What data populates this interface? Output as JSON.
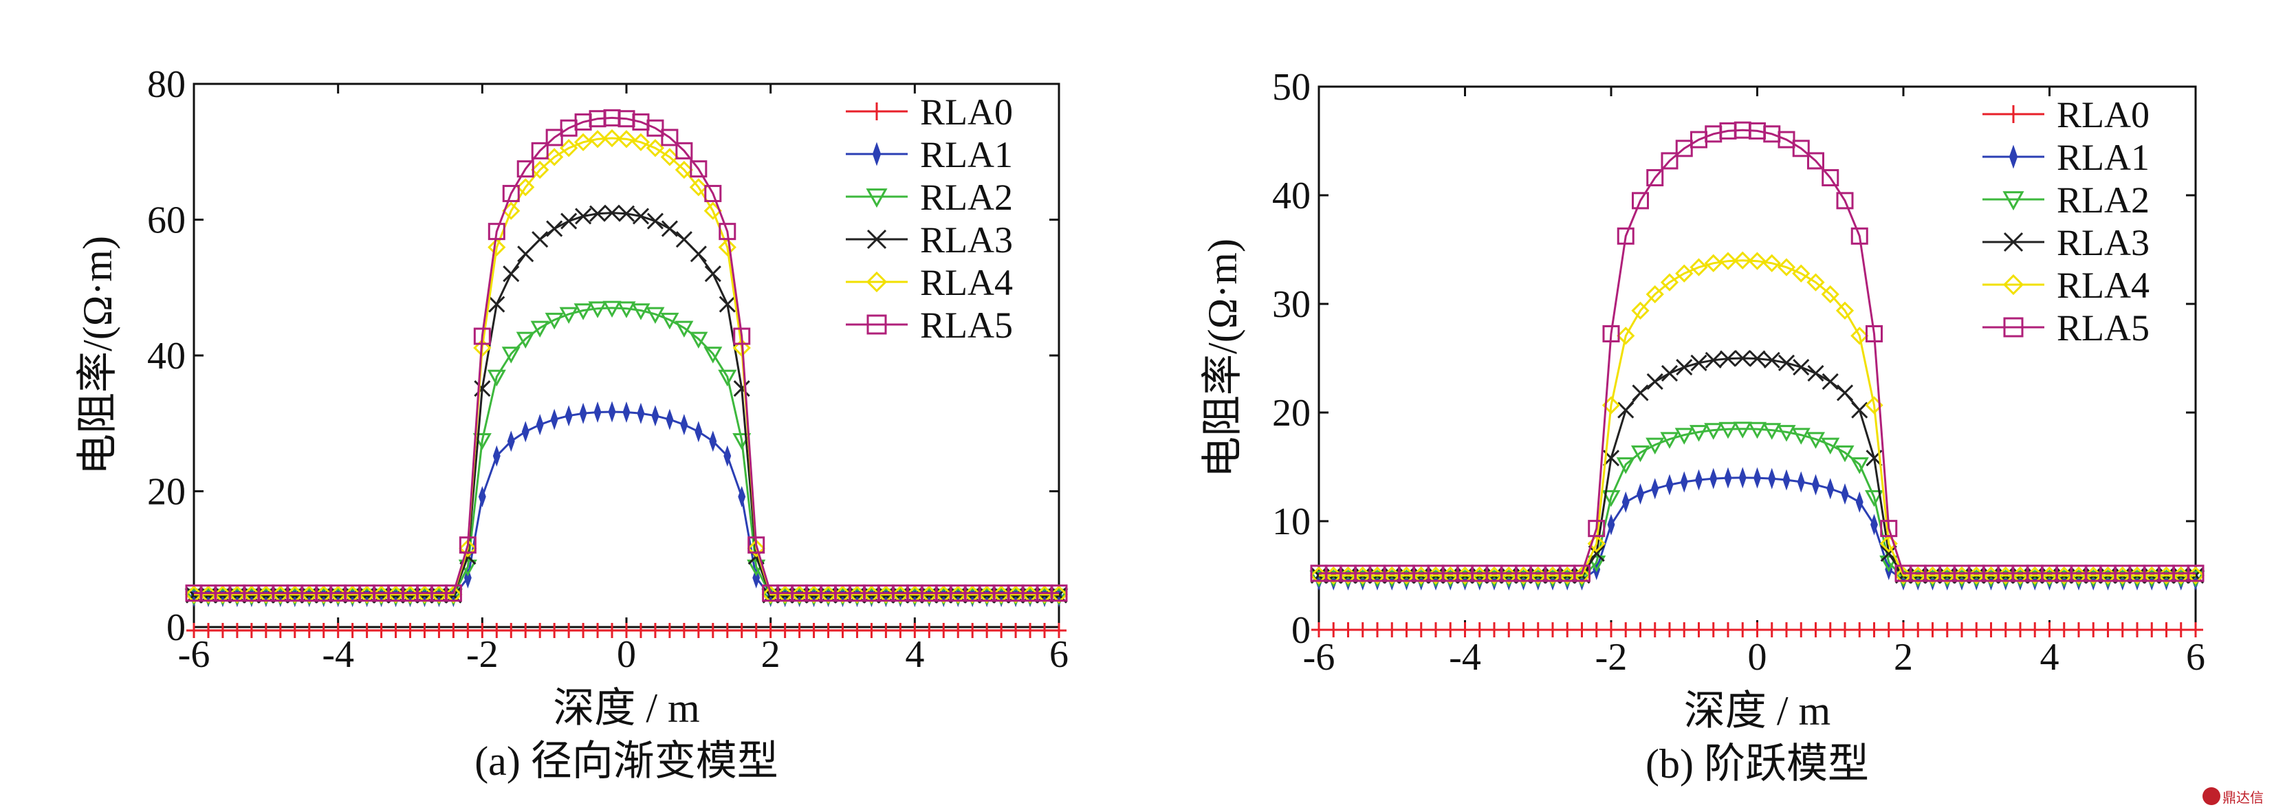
{
  "chart_data": [
    {
      "type": "line",
      "caption": "(a) 径向渐变模型",
      "xlabel": "深度 / m",
      "ylabel": "电阻率/(Ω·m)",
      "xlim": [
        -6,
        6
      ],
      "ylim": [
        0,
        80
      ],
      "xticks": [
        -6,
        -4,
        -2,
        0,
        2,
        4,
        6
      ],
      "yticks": [
        0,
        20,
        40,
        60,
        80
      ],
      "legend_position": "top-right",
      "x_range_sampled": {
        "start": -6,
        "end": 6,
        "step": 0.2
      },
      "series": [
        {
          "name": "RLA0",
          "color": "#e8202a",
          "marker": "plus",
          "shape": {
            "base": -0.5,
            "peak": -0.5,
            "halfwidth": 2.0
          }
        },
        {
          "name": "RLA1",
          "color": "#2b3fb4",
          "marker": "star-filled",
          "shape": {
            "base": 4.5,
            "peak": 31.7,
            "halfwidth": 1.9
          }
        },
        {
          "name": "RLA2",
          "color": "#3db83d",
          "marker": "triangle-down",
          "shape": {
            "base": 4.6,
            "peak": 47.0,
            "halfwidth": 1.9
          }
        },
        {
          "name": "RLA3",
          "color": "#222222",
          "marker": "x",
          "shape": {
            "base": 4.7,
            "peak": 61.0,
            "halfwidth": 1.9
          }
        },
        {
          "name": "RLA4",
          "color": "#f2e000",
          "marker": "diamond",
          "shape": {
            "base": 4.8,
            "peak": 72.0,
            "halfwidth": 1.9
          }
        },
        {
          "name": "RLA5",
          "color": "#b0207a",
          "marker": "square",
          "shape": {
            "base": 5.0,
            "peak": 75.0,
            "halfwidth": 1.9
          }
        }
      ]
    },
    {
      "type": "line",
      "caption": "(b) 阶跃模型",
      "xlabel": "深度 / m",
      "ylabel": "电阻率/(Ω·m)",
      "xlim": [
        -6,
        6
      ],
      "ylim": [
        0,
        50
      ],
      "xticks": [
        -6,
        -4,
        -2,
        0,
        2,
        4,
        6
      ],
      "yticks": [
        0,
        10,
        20,
        30,
        40,
        50
      ],
      "legend_position": "top-right",
      "x_range_sampled": {
        "start": -6,
        "end": 6,
        "step": 0.2
      },
      "series": [
        {
          "name": "RLA0",
          "color": "#e8202a",
          "marker": "plus",
          "shape": {
            "base": 0.0,
            "peak": 0.0,
            "halfwidth": 2.0
          }
        },
        {
          "name": "RLA1",
          "color": "#2b3fb4",
          "marker": "star-filled",
          "shape": {
            "base": 4.6,
            "peak": 14.0,
            "halfwidth": 1.9
          }
        },
        {
          "name": "RLA2",
          "color": "#3db83d",
          "marker": "triangle-down",
          "shape": {
            "base": 4.8,
            "peak": 18.5,
            "halfwidth": 1.9
          }
        },
        {
          "name": "RLA3",
          "color": "#222222",
          "marker": "x",
          "shape": {
            "base": 5.0,
            "peak": 25.0,
            "halfwidth": 1.9
          }
        },
        {
          "name": "RLA4",
          "color": "#f2e000",
          "marker": "diamond",
          "shape": {
            "base": 5.0,
            "peak": 34.0,
            "halfwidth": 1.9
          }
        },
        {
          "name": "RLA5",
          "color": "#b0207a",
          "marker": "square",
          "shape": {
            "base": 5.2,
            "peak": 46.0,
            "halfwidth": 1.9
          }
        }
      ]
    }
  ],
  "watermark": {
    "text": "鼎达信",
    "icon": "seal-icon"
  }
}
